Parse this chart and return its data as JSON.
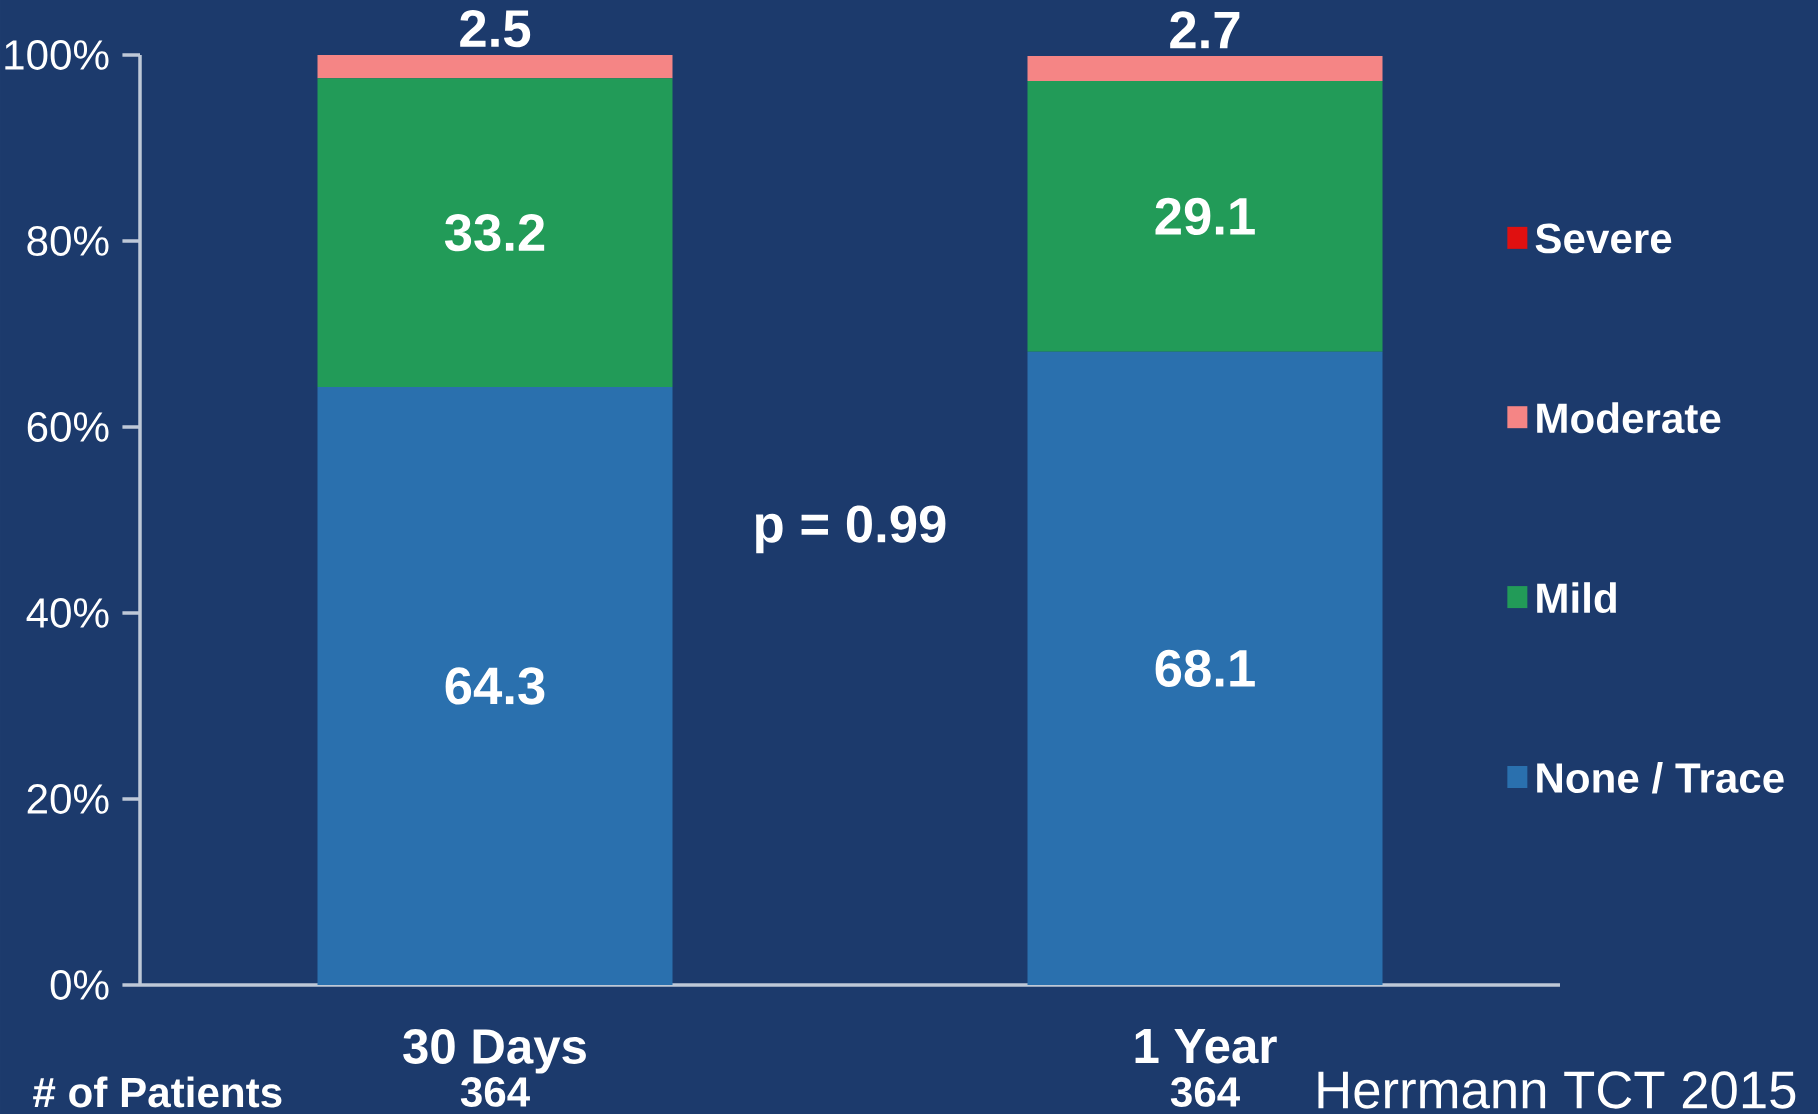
{
  "chart_data": {
    "type": "bar",
    "stacked": true,
    "categories": [
      "30 Days",
      "1 Year"
    ],
    "series": [
      {
        "name": "None / Trace",
        "color": "#2a70ae",
        "values": [
          64.3,
          68.1
        ],
        "value_labels": [
          "64.3",
          "68.1"
        ]
      },
      {
        "name": "Mild",
        "color": "#229b58",
        "values": [
          33.2,
          29.1
        ],
        "value_labels": [
          "33.2",
          "29.1"
        ]
      },
      {
        "name": "Moderate",
        "color": "#f58585",
        "values": [
          2.5,
          2.7
        ],
        "value_labels": [
          "2.5",
          "2.7"
        ]
      },
      {
        "name": "Severe",
        "color": "#e01010",
        "values": [
          0,
          0
        ],
        "value_labels": [
          null,
          null
        ]
      }
    ],
    "ylim": [
      0,
      100
    ],
    "yticks": [
      {
        "value": 0,
        "label": "0%"
      },
      {
        "value": 20,
        "label": "20%"
      },
      {
        "value": 40,
        "label": "40%"
      },
      {
        "value": 60,
        "label": "60%"
      },
      {
        "value": 80,
        "label": "80%"
      },
      {
        "value": 100,
        "label": "100%"
      }
    ],
    "legend": "right",
    "grid": false,
    "annotations": [
      "p = 0.99",
      "# of Patients",
      "364",
      "364",
      "Herrmann TCT 2015"
    ]
  }
}
